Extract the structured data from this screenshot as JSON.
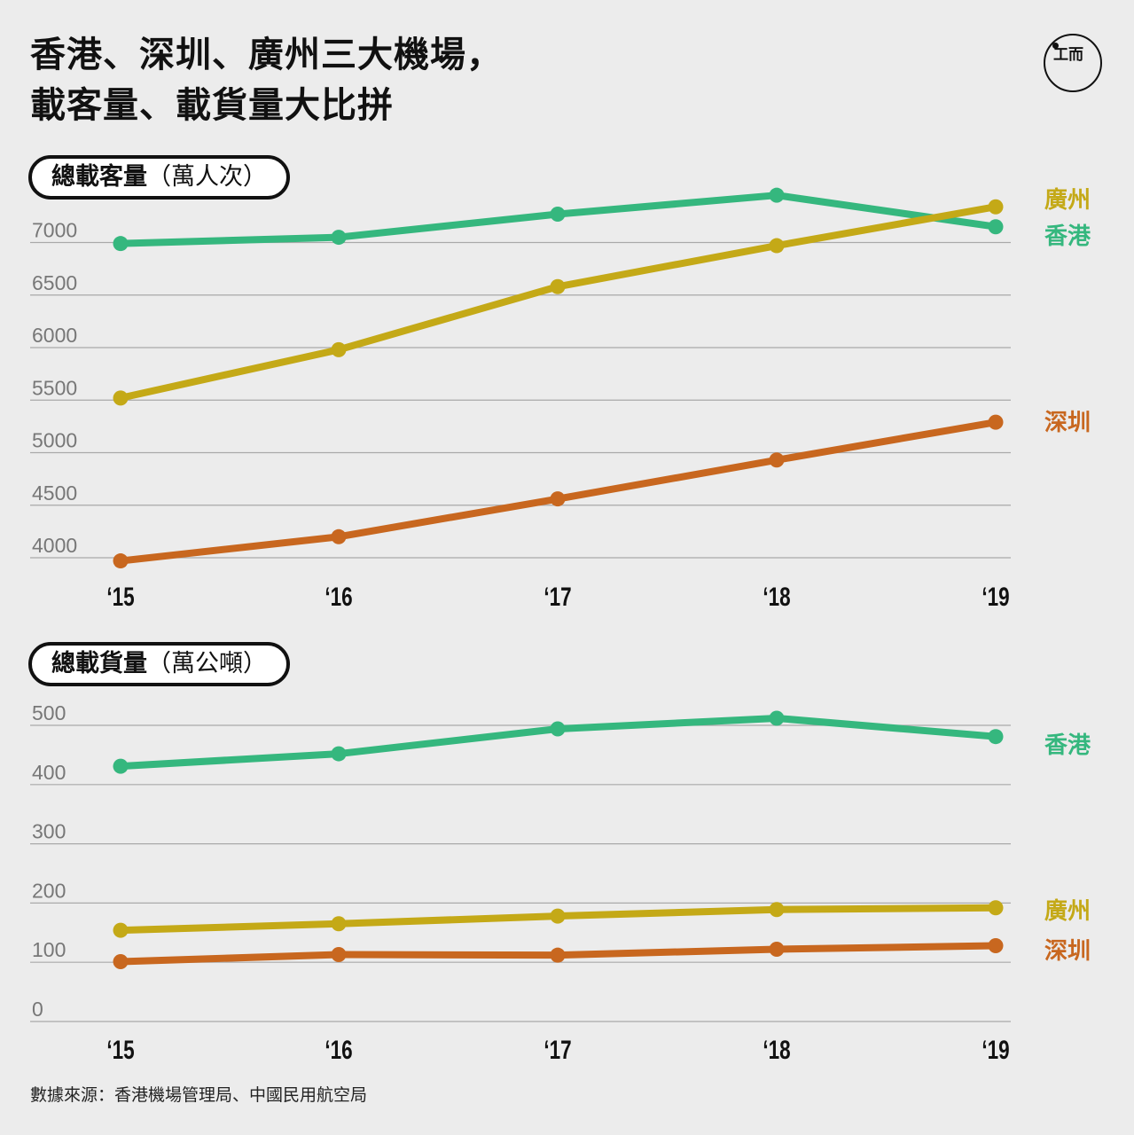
{
  "title": {
    "line1": "香港、深圳、廣州三大機場，",
    "line2": "載客量、載貨量大比拼"
  },
  "logo": {
    "icon": "initium-logo-icon",
    "text": "工而"
  },
  "source": "數據來源：香港機場管理局、中國民用航空局",
  "panels": [
    {
      "label": "總載客量",
      "unit": "（萬人次）"
    },
    {
      "label": "總載貨量",
      "unit": "（萬公噸）"
    }
  ],
  "colors": {
    "香港": "#35b77e",
    "廣州": "#c4a917",
    "深圳": "#c8671f",
    "grid": "#a9a9a9",
    "tick": "#777777"
  },
  "chart_data": [
    {
      "type": "line",
      "title": "總載客量（萬人次）",
      "categories": [
        "‘15",
        "‘16",
        "‘17",
        "‘18",
        "‘19"
      ],
      "yticks": [
        4000,
        4500,
        5000,
        5500,
        6000,
        6500,
        7000
      ],
      "series": [
        {
          "name": "香港",
          "values": [
            6990,
            7050,
            7270,
            7450,
            7150
          ]
        },
        {
          "name": "廣州",
          "values": [
            5520,
            5980,
            6580,
            6970,
            7340
          ]
        },
        {
          "name": "深圳",
          "values": [
            3970,
            4200,
            4560,
            4930,
            5290
          ]
        }
      ],
      "legend": "right end of lines",
      "grid": true
    },
    {
      "type": "line",
      "title": "總載貨量（萬公噸）",
      "categories": [
        "‘15",
        "‘16",
        "‘17",
        "‘18",
        "‘19"
      ],
      "yticks": [
        0,
        100,
        200,
        300,
        400,
        500
      ],
      "series": [
        {
          "name": "香港",
          "values": [
            431,
            452,
            494,
            512,
            481
          ]
        },
        {
          "name": "廣州",
          "values": [
            154,
            165,
            178,
            189,
            192
          ]
        },
        {
          "name": "深圳",
          "values": [
            101,
            113,
            112,
            122,
            128
          ]
        }
      ],
      "legend": "right end of lines",
      "grid": true
    }
  ]
}
